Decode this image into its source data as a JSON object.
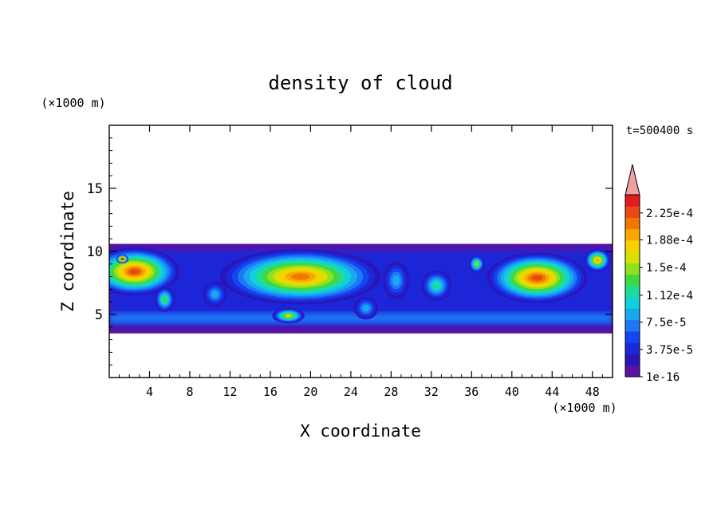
{
  "chart_data": {
    "type": "heatmap",
    "title": "density of cloud",
    "xlabel": "X coordinate",
    "ylabel": "Z coordinate",
    "x_unit": "(×1000 m)",
    "z_unit": "(×1000 m)",
    "time_label": "t=500400 s",
    "xlim": [
      0,
      50
    ],
    "zlim": [
      0,
      20
    ],
    "x_ticks": [
      4,
      8,
      12,
      16,
      20,
      24,
      28,
      32,
      36,
      40,
      44,
      48
    ],
    "z_ticks": [
      5,
      10,
      15
    ],
    "colorbar": {
      "labels": [
        "1e-16",
        "3.75e-5",
        "7.5e-5",
        "1.12e-4",
        "1.5e-4",
        "1.88e-4",
        "2.25e-4"
      ],
      "levels": [
        0,
        3.75e-05,
        7.5e-05,
        0.000112,
        0.00015,
        0.000188,
        0.000225
      ],
      "colors": [
        "#5a12a0",
        "#2a16b8",
        "#1c28d8",
        "#1445f0",
        "#1e78f5",
        "#19a8f0",
        "#10d0dc",
        "#20dc9c",
        "#40d840",
        "#90e020",
        "#d8e000",
        "#f8d000",
        "#f8a800",
        "#f07800",
        "#e84818",
        "#e01c1c"
      ],
      "extend_color": "#f0a0a0"
    },
    "cloud_layer": {
      "z_bottom": 3.5,
      "z_top": 10.6
    },
    "blobs": [
      {
        "x": 2.5,
        "z": 8.4,
        "rx": 4.5,
        "rz": 1.9,
        "value": 0.00023
      },
      {
        "x": 1.3,
        "z": 9.4,
        "rx": 0.6,
        "rz": 0.35,
        "value": 0.00028
      },
      {
        "x": 19.0,
        "z": 8.0,
        "rx": 8.0,
        "rz": 2.2,
        "value": 0.00021
      },
      {
        "x": 17.8,
        "z": 4.9,
        "rx": 1.6,
        "rz": 0.6,
        "value": 0.00016
      },
      {
        "x": 42.5,
        "z": 7.9,
        "rx": 5.0,
        "rz": 2.0,
        "value": 0.00022
      },
      {
        "x": 48.5,
        "z": 9.3,
        "rx": 1.3,
        "rz": 0.9,
        "value": 0.00019
      },
      {
        "x": 36.5,
        "z": 9.0,
        "rx": 0.8,
        "rz": 0.7,
        "value": 0.00015
      },
      {
        "x": 32.5,
        "z": 7.3,
        "rx": 1.5,
        "rz": 1.2,
        "value": 0.00012
      },
      {
        "x": 28.5,
        "z": 7.7,
        "rx": 1.3,
        "rz": 1.5,
        "value": 8e-05
      },
      {
        "x": 5.5,
        "z": 6.2,
        "rx": 1.0,
        "rz": 1.0,
        "value": 0.00013
      },
      {
        "x": 10.5,
        "z": 6.6,
        "rx": 1.2,
        "rz": 1.0,
        "value": 9e-05
      },
      {
        "x": 25.5,
        "z": 5.5,
        "rx": 1.2,
        "rz": 0.9,
        "value": 9e-05
      }
    ]
  }
}
